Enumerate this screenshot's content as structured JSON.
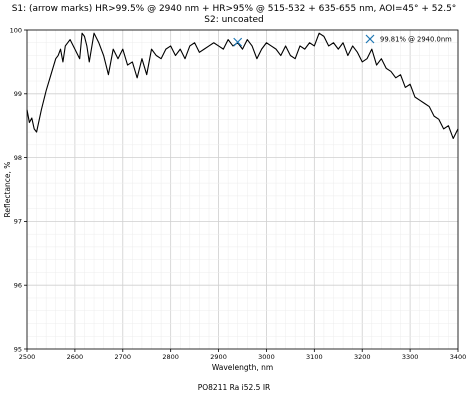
{
  "chart_data": {
    "type": "line",
    "title": "S1: (arrow marks) HR>99.5% @ 2940 nm + HR>95% @ 515-532 + 635-655 nm, AOI=45° + 52.5°",
    "subtitle": "S2: uncoated",
    "xlabel": "Wavelength, nm",
    "ylabel": "Reflectance, %",
    "xlim": [
      2500,
      3400
    ],
    "ylim": [
      95,
      100
    ],
    "xticks": [
      "2500",
      "2600",
      "2700",
      "2800",
      "2900",
      "3000",
      "3100",
      "3200",
      "3300",
      "3400"
    ],
    "yticks": [
      "95",
      "96",
      "97",
      "98",
      "99",
      "100"
    ],
    "grid": true,
    "legend": "top-right",
    "series": [
      {
        "color": "#000000",
        "x": [
          2500,
          2505,
          2510,
          2515,
          2520,
          2530,
          2540,
          2550,
          2560,
          2565,
          2570,
          2575,
          2580,
          2590,
          2600,
          2610,
          2615,
          2620,
          2625,
          2630,
          2640,
          2650,
          2660,
          2670,
          2680,
          2690,
          2700,
          2710,
          2720,
          2730,
          2740,
          2750,
          2760,
          2770,
          2780,
          2790,
          2800,
          2810,
          2820,
          2830,
          2840,
          2850,
          2860,
          2870,
          2880,
          2890,
          2900,
          2910,
          2920,
          2930,
          2940,
          2950,
          2960,
          2970,
          2980,
          2990,
          3000,
          3010,
          3020,
          3030,
          3040,
          3050,
          3060,
          3070,
          3080,
          3090,
          3100,
          3110,
          3120,
          3130,
          3140,
          3150,
          3160,
          3170,
          3180,
          3190,
          3200,
          3210,
          3220,
          3230,
          3240,
          3250,
          3260,
          3270,
          3280,
          3290,
          3300,
          3310,
          3320,
          3330,
          3340,
          3350,
          3360,
          3370,
          3380,
          3390,
          3400
        ],
        "y": [
          98.75,
          98.55,
          98.62,
          98.45,
          98.4,
          98.75,
          99.05,
          99.3,
          99.55,
          99.6,
          99.7,
          99.5,
          99.75,
          99.85,
          99.7,
          99.55,
          99.95,
          99.9,
          99.75,
          99.5,
          99.95,
          99.8,
          99.6,
          99.3,
          99.7,
          99.55,
          99.7,
          99.45,
          99.5,
          99.25,
          99.55,
          99.3,
          99.7,
          99.6,
          99.55,
          99.7,
          99.75,
          99.6,
          99.7,
          99.55,
          99.75,
          99.8,
          99.65,
          99.7,
          99.75,
          99.8,
          99.75,
          99.7,
          99.85,
          99.75,
          99.8,
          99.7,
          99.85,
          99.75,
          99.55,
          99.7,
          99.8,
          99.75,
          99.7,
          99.6,
          99.75,
          99.6,
          99.55,
          99.75,
          99.7,
          99.8,
          99.75,
          99.95,
          99.9,
          99.75,
          99.8,
          99.7,
          99.8,
          99.6,
          99.75,
          99.65,
          99.5,
          99.55,
          99.7,
          99.45,
          99.55,
          99.4,
          99.35,
          99.25,
          99.3,
          99.1,
          99.15,
          98.95,
          98.9,
          98.85,
          98.8,
          98.65,
          98.6,
          98.45,
          98.5,
          98.3,
          98.45
        ]
      }
    ],
    "marker": {
      "x": 2940,
      "y": 99.81,
      "label": "99.81% @ 2940.0nm",
      "color": "#1f77b4"
    },
    "legend_entry": {
      "label": "99.81% @ 2940.0nm",
      "color": "#1f77b4"
    },
    "footer": "PO8211 Ra i52.5 IR"
  }
}
